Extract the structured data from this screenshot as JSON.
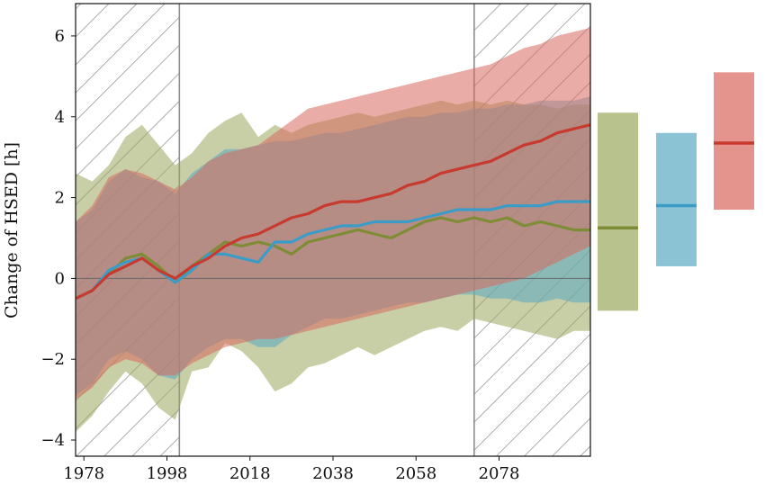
{
  "chart_data": {
    "type": "line",
    "ylabel": "Change of HSED [h]",
    "xlabel": "",
    "xlim": [
      1976,
      2100
    ],
    "ylim": [
      -4.4,
      6.8
    ],
    "xticks": [
      {
        "value": 1978,
        "label": "1978"
      },
      {
        "value": 1998,
        "label": "1998"
      },
      {
        "value": 2018,
        "label": "2018"
      },
      {
        "value": 2038,
        "label": "2038"
      },
      {
        "value": 2058,
        "label": "2058"
      },
      {
        "value": 2078,
        "label": "2078"
      }
    ],
    "yticks": [
      {
        "value": -4,
        "label": "−4"
      },
      {
        "value": -2,
        "label": "−2"
      },
      {
        "value": 0,
        "label": "0"
      },
      {
        "value": 2,
        "label": "2"
      },
      {
        "value": 4,
        "label": "4"
      },
      {
        "value": 6,
        "label": "6"
      }
    ],
    "zero_line": 0,
    "hatched_periods": [
      [
        1976,
        2001
      ],
      [
        2072,
        2100
      ]
    ],
    "grid": false,
    "series": [
      {
        "color": "#7f8c36",
        "fill_color": "#9aa85c",
        "x": [
          1976,
          1980,
          1984,
          1988,
          1992,
          1996,
          2000,
          2004,
          2008,
          2012,
          2016,
          2020,
          2024,
          2028,
          2032,
          2036,
          2040,
          2044,
          2048,
          2052,
          2056,
          2060,
          2064,
          2068,
          2072,
          2076,
          2080,
          2084,
          2088,
          2092,
          2096,
          2100
        ],
        "y": [
          -0.5,
          -0.3,
          0.1,
          0.5,
          0.6,
          0.3,
          -0.1,
          0.3,
          0.6,
          0.9,
          0.8,
          0.9,
          0.8,
          0.6,
          0.9,
          1.0,
          1.1,
          1.2,
          1.1,
          1.0,
          1.2,
          1.4,
          1.5,
          1.4,
          1.5,
          1.4,
          1.5,
          1.3,
          1.4,
          1.3,
          1.2,
          1.2
        ],
        "upper": [
          2.6,
          2.4,
          2.8,
          3.5,
          3.8,
          3.3,
          2.8,
          3.1,
          3.6,
          3.9,
          4.1,
          3.5,
          3.8,
          3.6,
          3.8,
          3.9,
          4.0,
          4.1,
          4.0,
          4.1,
          4.2,
          4.3,
          4.4,
          4.3,
          4.4,
          4.3,
          4.4,
          4.3,
          4.3,
          4.2,
          4.3,
          4.3
        ],
        "lower": [
          -3.8,
          -3.4,
          -2.8,
          -2.3,
          -2.6,
          -3.2,
          -3.5,
          -2.3,
          -2.2,
          -1.6,
          -1.8,
          -2.2,
          -2.8,
          -2.6,
          -2.2,
          -2.1,
          -1.9,
          -1.7,
          -1.9,
          -1.7,
          -1.5,
          -1.3,
          -1.2,
          -1.3,
          -1.0,
          -1.1,
          -1.2,
          -1.3,
          -1.4,
          -1.5,
          -1.3,
          -1.3
        ],
        "range_bar": {
          "low": -0.8,
          "high": 4.1,
          "median": 1.25
        }
      },
      {
        "color": "#3b9cc8",
        "fill_color": "#5aa9c2",
        "x": [
          1976,
          1980,
          1984,
          1988,
          1992,
          1996,
          2000,
          2004,
          2008,
          2012,
          2016,
          2020,
          2024,
          2028,
          2032,
          2036,
          2040,
          2044,
          2048,
          2052,
          2056,
          2060,
          2064,
          2068,
          2072,
          2076,
          2080,
          2084,
          2088,
          2092,
          2096,
          2100
        ],
        "y": [
          -0.5,
          -0.3,
          0.2,
          0.4,
          0.5,
          0.2,
          -0.1,
          0.2,
          0.6,
          0.6,
          0.5,
          0.4,
          0.9,
          0.9,
          1.1,
          1.2,
          1.3,
          1.3,
          1.4,
          1.4,
          1.4,
          1.5,
          1.6,
          1.7,
          1.7,
          1.7,
          1.8,
          1.8,
          1.8,
          1.9,
          1.9,
          1.9
        ],
        "upper": [
          1.4,
          1.7,
          2.4,
          2.7,
          2.5,
          2.4,
          2.1,
          2.6,
          2.9,
          3.2,
          3.2,
          3.3,
          3.4,
          3.4,
          3.5,
          3.6,
          3.6,
          3.7,
          3.8,
          3.9,
          4.0,
          4.0,
          4.1,
          4.1,
          4.2,
          4.2,
          4.3,
          4.3,
          4.4,
          4.4,
          4.4,
          4.5
        ],
        "lower": [
          -2.9,
          -2.6,
          -2.0,
          -1.8,
          -2.0,
          -2.4,
          -2.5,
          -2.0,
          -1.7,
          -1.5,
          -1.5,
          -1.7,
          -1.7,
          -1.4,
          -1.2,
          -1.0,
          -1.0,
          -0.9,
          -0.8,
          -0.7,
          -0.6,
          -0.6,
          -0.5,
          -0.4,
          -0.4,
          -0.5,
          -0.5,
          -0.6,
          -0.6,
          -0.5,
          -0.6,
          -0.6
        ],
        "range_bar": {
          "low": 0.3,
          "high": 3.6,
          "median": 1.8
        }
      },
      {
        "color": "#c83a2e",
        "fill_color": "#d9675c",
        "x": [
          1976,
          1980,
          1984,
          1988,
          1992,
          1996,
          2000,
          2004,
          2008,
          2012,
          2016,
          2020,
          2024,
          2028,
          2032,
          2036,
          2040,
          2044,
          2048,
          2052,
          2056,
          2060,
          2064,
          2068,
          2072,
          2076,
          2080,
          2084,
          2088,
          2092,
          2096,
          2100
        ],
        "y": [
          -0.5,
          -0.3,
          0.1,
          0.3,
          0.5,
          0.2,
          0.0,
          0.3,
          0.5,
          0.8,
          1.0,
          1.1,
          1.3,
          1.5,
          1.6,
          1.8,
          1.9,
          1.9,
          2.0,
          2.1,
          2.3,
          2.4,
          2.6,
          2.7,
          2.8,
          2.9,
          3.1,
          3.3,
          3.4,
          3.6,
          3.7,
          3.8
        ],
        "upper": [
          1.4,
          1.8,
          2.5,
          2.7,
          2.6,
          2.4,
          2.2,
          2.5,
          2.9,
          3.1,
          3.2,
          3.3,
          3.6,
          3.9,
          4.2,
          4.3,
          4.4,
          4.5,
          4.6,
          4.7,
          4.8,
          4.9,
          5.0,
          5.1,
          5.2,
          5.3,
          5.5,
          5.7,
          5.8,
          6.0,
          6.1,
          6.2
        ],
        "lower": [
          -3.0,
          -2.7,
          -2.2,
          -2.0,
          -2.1,
          -2.4,
          -2.4,
          -2.1,
          -1.9,
          -1.7,
          -1.6,
          -1.5,
          -1.5,
          -1.4,
          -1.3,
          -1.2,
          -1.1,
          -1.0,
          -0.9,
          -0.8,
          -0.7,
          -0.6,
          -0.5,
          -0.4,
          -0.3,
          -0.2,
          -0.1,
          0.0,
          0.2,
          0.4,
          0.6,
          0.8
        ],
        "range_bar": {
          "low": 1.7,
          "high": 5.1,
          "median": 3.35
        }
      }
    ]
  }
}
